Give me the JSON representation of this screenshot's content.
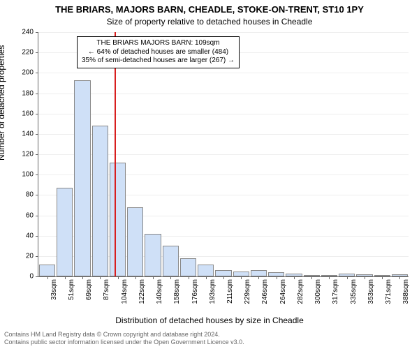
{
  "title_main": "THE BRIARS, MAJORS BARN, CHEADLE, STOKE-ON-TRENT, ST10 1PY",
  "title_sub": "Size of property relative to detached houses in Cheadle",
  "ylabel": "Number of detached properties",
  "xlabel": "Distribution of detached houses by size in Cheadle",
  "footer_line1": "Contains HM Land Registry data © Crown copyright and database right 2024.",
  "footer_line2": "Contains public sector information licensed under the Open Government Licence v3.0.",
  "annot_line1": "THE BRIARS MAJORS BARN: 109sqm",
  "annot_line2": "← 64% of detached houses are smaller (484)",
  "annot_line3": "35% of semi-detached houses are larger (267) →",
  "chart": {
    "type": "histogram",
    "ylim_max": 240,
    "ytick_step": 20,
    "bar_color": "#cfe0f7",
    "bar_border": "#888888",
    "grid_color": "#eeeeee",
    "refline_color": "#d81e1e",
    "refline_x_index": 4.3,
    "categories": [
      "33sqm",
      "51sqm",
      "69sqm",
      "87sqm",
      "104sqm",
      "122sqm",
      "140sqm",
      "158sqm",
      "176sqm",
      "193sqm",
      "211sqm",
      "229sqm",
      "246sqm",
      "264sqm",
      "282sqm",
      "300sqm",
      "317sqm",
      "335sqm",
      "353sqm",
      "371sqm",
      "388sqm"
    ],
    "values": [
      12,
      87,
      193,
      148,
      112,
      68,
      42,
      30,
      18,
      12,
      6,
      5,
      6,
      4,
      3,
      1,
      1,
      3,
      2,
      1,
      2
    ]
  }
}
